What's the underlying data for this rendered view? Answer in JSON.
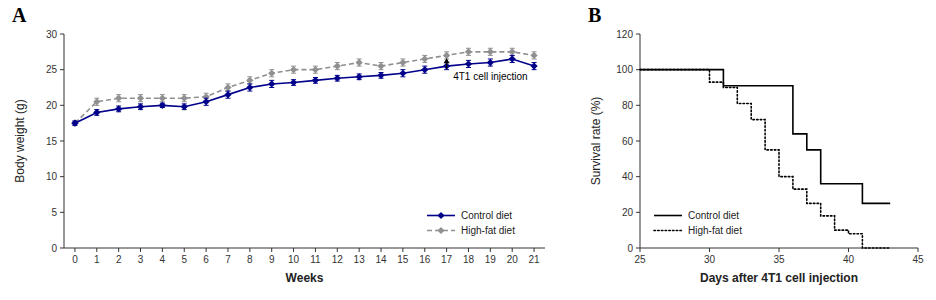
{
  "chart_data": [
    {
      "type": "line",
      "title": "A",
      "xlabel": "Weeks",
      "ylabel": "Body weight (g)",
      "x": [
        0,
        1,
        2,
        3,
        4,
        5,
        6,
        7,
        8,
        9,
        10,
        11,
        12,
        13,
        14,
        15,
        16,
        17,
        18,
        19,
        20,
        21
      ],
      "xlim": [
        -0.5,
        21.5
      ],
      "xticks": [
        0,
        1,
        2,
        3,
        4,
        5,
        6,
        7,
        8,
        9,
        10,
        11,
        12,
        13,
        14,
        15,
        16,
        17,
        18,
        19,
        20,
        21
      ],
      "ylim": [
        0,
        30
      ],
      "yticks": [
        0,
        5,
        10,
        15,
        20,
        25,
        30
      ],
      "legend": "lower right",
      "grid": false,
      "series": [
        {
          "name": "Control diet",
          "color": "#00008B",
          "line_style": "solid",
          "marker": "diamond",
          "values": [
            17.5,
            19.0,
            19.5,
            19.8,
            20.0,
            19.8,
            20.5,
            21.5,
            22.5,
            23.0,
            23.2,
            23.5,
            23.8,
            24.0,
            24.2,
            24.5,
            25.0,
            25.5,
            25.8,
            26.0,
            26.5,
            25.5
          ],
          "errors": [
            0.3,
            0.4,
            0.4,
            0.4,
            0.3,
            0.4,
            0.5,
            0.5,
            0.5,
            0.5,
            0.4,
            0.4,
            0.4,
            0.4,
            0.4,
            0.5,
            0.5,
            0.5,
            0.5,
            0.5,
            0.5,
            0.5
          ]
        },
        {
          "name": "High-fat diet",
          "color": "#909090",
          "line_style": "dashed",
          "marker": "diamond",
          "values": [
            17.5,
            20.5,
            21.0,
            21.0,
            21.0,
            21.0,
            21.2,
            22.5,
            23.5,
            24.5,
            25.0,
            25.0,
            25.5,
            26.0,
            25.5,
            26.0,
            26.5,
            27.0,
            27.5,
            27.5,
            27.5,
            27.0
          ],
          "errors": [
            0.3,
            0.5,
            0.5,
            0.5,
            0.5,
            0.5,
            0.5,
            0.5,
            0.5,
            0.5,
            0.5,
            0.5,
            0.5,
            0.5,
            0.5,
            0.5,
            0.5,
            0.5,
            0.5,
            0.5,
            0.5,
            0.5
          ]
        }
      ],
      "annotations": [
        {
          "text": "4T1 cell injection",
          "x": 17.3,
          "y": 24.5,
          "arrow_from": [
            17,
            25.1
          ],
          "arrow_to": [
            17,
            26.6
          ]
        }
      ]
    },
    {
      "type": "line",
      "title": "B",
      "xlabel": "Days after 4T1 cell injection",
      "ylabel": "Survival rate (%)",
      "xlim": [
        25,
        45
      ],
      "xticks": [
        25,
        30,
        35,
        40,
        45
      ],
      "ylim": [
        0,
        120
      ],
      "yticks": [
        0,
        20,
        40,
        60,
        80,
        100,
        120
      ],
      "legend": "lower left",
      "grid": false,
      "series": [
        {
          "name": "Control diet",
          "color": "#000000",
          "line_style": "solid",
          "x": [
            25,
            31,
            31,
            36,
            36,
            37,
            37,
            38,
            38,
            41,
            41,
            43
          ],
          "values": [
            100,
            100,
            91,
            91,
            64,
            64,
            55,
            55,
            36,
            36,
            25,
            25
          ]
        },
        {
          "name": "High-fat diet",
          "color": "#000000",
          "line_style": "dotted",
          "x": [
            25,
            30,
            30,
            31,
            31,
            32,
            32,
            33,
            33,
            34,
            34,
            35,
            35,
            36,
            36,
            37,
            37,
            38,
            38,
            39,
            39,
            40,
            40,
            41,
            41,
            42,
            42,
            43
          ],
          "values": [
            100,
            100,
            93,
            93,
            90,
            90,
            81,
            81,
            72,
            72,
            55,
            55,
            40,
            40,
            33,
            33,
            25,
            25,
            18,
            18,
            10,
            10,
            8,
            8,
            0,
            0,
            0,
            0
          ]
        }
      ]
    }
  ]
}
